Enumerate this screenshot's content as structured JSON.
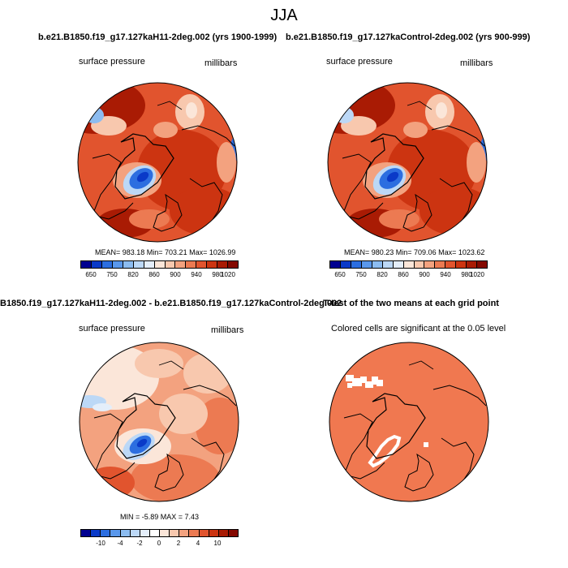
{
  "figure_title": "JJA",
  "panels": [
    {
      "title": "b.e21.B1850.f19_g17.127kaH11-2deg.002 (yrs 1900-1999)",
      "left_label": "surface pressure",
      "right_label": "millibars",
      "stats": "MEAN= 983.18  Min= 703.21  Max= 1026.99",
      "colorbar_ticks": [
        "650",
        "750",
        "820",
        "860",
        "900",
        "940",
        "980",
        "1020"
      ]
    },
    {
      "title": "b.e21.B1850.f19_g17.127kaControl-2deg.002 (yrs 900-999)",
      "left_label": "surface pressure",
      "right_label": "millibars",
      "stats": "MEAN= 980.23  Min= 709.06  Max= 1023.62",
      "colorbar_ticks": [
        "650",
        "750",
        "820",
        "860",
        "900",
        "940",
        "980",
        "1020"
      ]
    },
    {
      "title": "B1850.f19_g17.127kaH11-2deg.002 - b.e21.B1850.f19_g17.127kaControl-2deg.002",
      "left_label": "surface pressure",
      "right_label": "millibars",
      "stats": "MIN =  -5.89 MAX =   7.43",
      "colorbar_ticks": [
        "-10",
        "-4",
        "-2",
        "0",
        "2",
        "4",
        "10"
      ]
    },
    {
      "title": "T-test of the two means at each grid point",
      "left_label": "Colored cells are significant at the 0.05 level"
    }
  ],
  "colors": {
    "abs_scale": [
      "#000090",
      "#0a3ac8",
      "#2c6ee0",
      "#5a98ec",
      "#8cbcf0",
      "#bcd8f6",
      "#e4eefa",
      "#fbe6d9",
      "#f8c8ae",
      "#f3a27f",
      "#ec7a52",
      "#e1542e",
      "#cc3411",
      "#a91b04",
      "#840800"
    ],
    "diff_scale": [
      "#000090",
      "#0a3ac8",
      "#2c6ee0",
      "#5a98ec",
      "#8cbcf0",
      "#bcd8f6",
      "#e4eefa",
      "#ffffff",
      "#fbe6d9",
      "#f8c8ae",
      "#f3a27f",
      "#ec7a52",
      "#e1542e",
      "#cc3411",
      "#a91b04",
      "#840800"
    ],
    "significant": "#f07850"
  }
}
